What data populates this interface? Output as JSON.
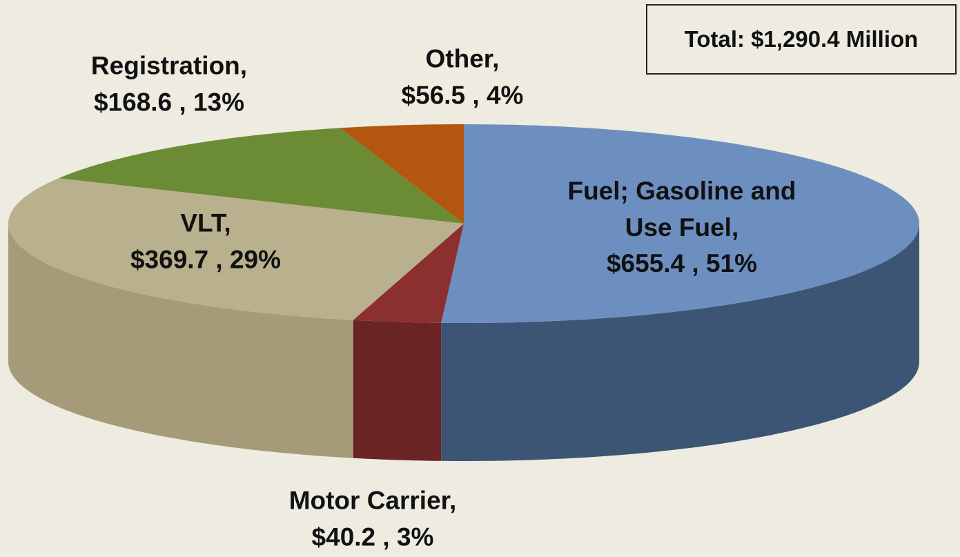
{
  "chart_data": {
    "type": "pie3d",
    "annotation": "Total: $1,290.4 Million",
    "categories": [
      "Fuel; Gasoline and Use Fuel,",
      "Motor Carrier,",
      "VLT,",
      "Registration,",
      "Other,"
    ],
    "values": [
      655.4,
      40.2,
      369.7,
      168.6,
      56.5
    ],
    "value_labels": [
      "$655.4 , 51%",
      "$40.2 , 3%",
      "$369.7 , 29%",
      "$168.6 , 13%",
      "$56.5 , 4%"
    ],
    "colors": [
      "#6d8fc0",
      "#8c2f2f",
      "#b9b08d",
      "#6b8b35",
      "#b4560f"
    ],
    "side_colors": [
      "#3d5574",
      "#6a2424",
      "#a59b79",
      "#4e6a26",
      "#8a410b"
    ]
  }
}
